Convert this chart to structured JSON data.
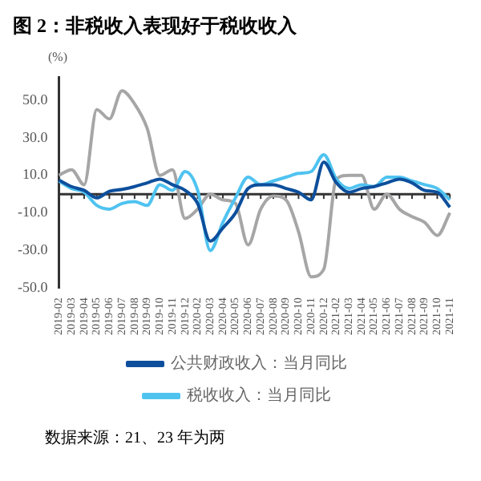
{
  "chart_data": {
    "type": "line",
    "title": "图 2：非税收入表现好于税收收入",
    "ylabel": "(%)",
    "annotations": [
      "数据来源：21、23 年为两"
    ],
    "categories": [
      "2019-02",
      "2019-03",
      "2019-04",
      "2019-05",
      "2019-06",
      "2019-07",
      "2019-08",
      "2019-09",
      "2019-10",
      "2019-11",
      "2019-12",
      "2020-02",
      "2020-03",
      "2020-04",
      "2020-05",
      "2020-06",
      "2020-07",
      "2020-08",
      "2020-09",
      "2020-10",
      "2020-11",
      "2020-12",
      "2021-02",
      "2021-03",
      "2021-04",
      "2021-05",
      "2021-06",
      "2021-07",
      "2021-08",
      "2021-09",
      "2021-10",
      "2021-11"
    ],
    "series": [
      {
        "name": "公共财政收入：当月同比",
        "color": "#0d4f9c",
        "values": [
          7.5,
          4,
          2,
          -2,
          1.5,
          2.5,
          4,
          6,
          8,
          5,
          2,
          -5,
          -25,
          -18,
          -10,
          3,
          5,
          5,
          3,
          1,
          -3,
          17,
          6,
          1,
          3,
          4,
          6,
          8,
          6,
          2,
          1,
          -7
        ]
      },
      {
        "name": "税收收入：当月同比",
        "color": "#4fc3f0",
        "values": [
          7,
          3,
          1,
          -6,
          -8,
          -5,
          -4,
          -6,
          5,
          2,
          12,
          2,
          -30,
          -15,
          -2,
          9,
          5,
          7,
          9,
          11,
          12,
          21,
          8,
          3,
          5,
          4,
          9,
          9,
          7,
          5,
          3,
          -3
        ]
      },
      {
        "color": "#a6a6a6",
        "values": [
          10,
          13,
          5,
          45,
          40,
          55,
          48,
          35,
          10,
          13,
          -13,
          -8,
          0,
          -3,
          -5,
          -27,
          -8,
          -1,
          -3,
          -20,
          -44,
          -40,
          8,
          10,
          10,
          -8,
          0,
          -8,
          -12,
          -15,
          -22,
          -10
        ]
      }
    ],
    "ylim": [
      -50,
      62
    ],
    "yticks": [
      {
        "value": -50,
        "label": "-50.0"
      },
      {
        "value": -30,
        "label": "-30.0"
      },
      {
        "value": -10,
        "label": "-10.0"
      },
      {
        "value": 10,
        "label": "10.0"
      },
      {
        "value": 30,
        "label": "30.0"
      },
      {
        "value": 50,
        "label": "50.0"
      }
    ],
    "grid": false,
    "legend": "bottom",
    "marker": "none",
    "line_style": "solid"
  }
}
